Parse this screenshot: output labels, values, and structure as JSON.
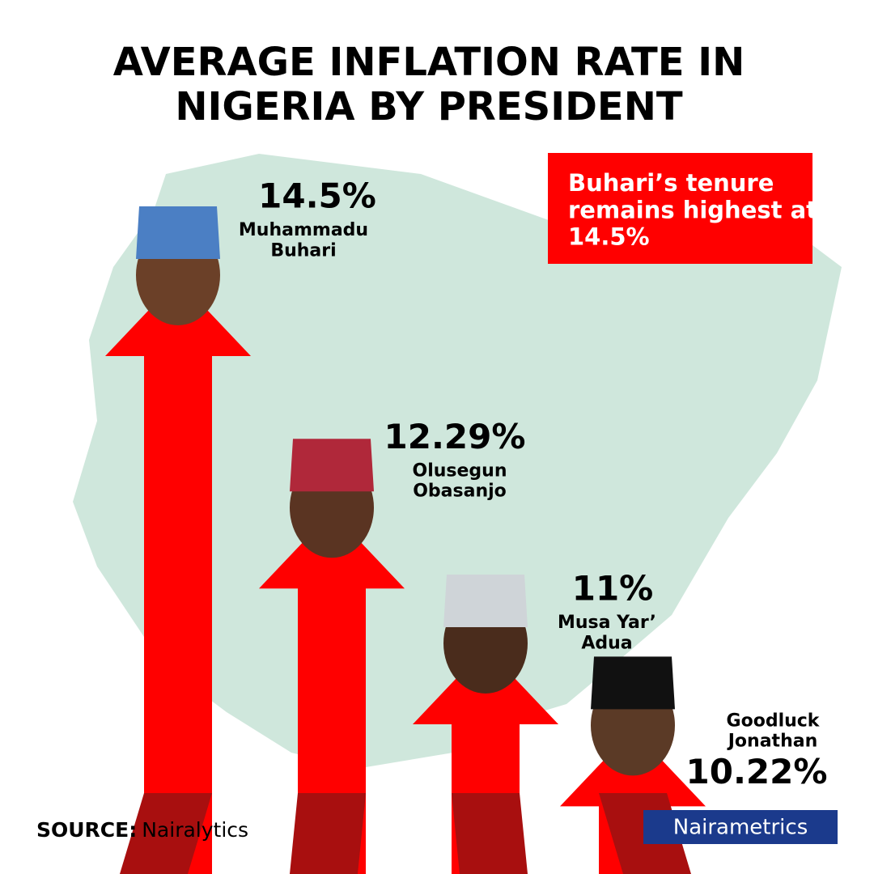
{
  "chart_data": {
    "type": "arrow",
    "title": "AVERAGE INFLATION RATE IN NIGERIA BY PRESIDENT",
    "annotation": "Buhari’s tenure remains highest at 14.5%",
    "categories": [
      "Muhammadu Buhari",
      "Olusegun Obasanjo",
      "Musa Yar’ Adua",
      "Goodluck Jonathan"
    ],
    "values": [
      14.5,
      12.29,
      11,
      10.22
    ],
    "value_labels": [
      "14.5%",
      "12.29%",
      "11%",
      "10.22%"
    ],
    "color": "#ff0000",
    "source_label": "SOURCE:",
    "source": "Nairalytics",
    "brand": "Nairametrics"
  }
}
